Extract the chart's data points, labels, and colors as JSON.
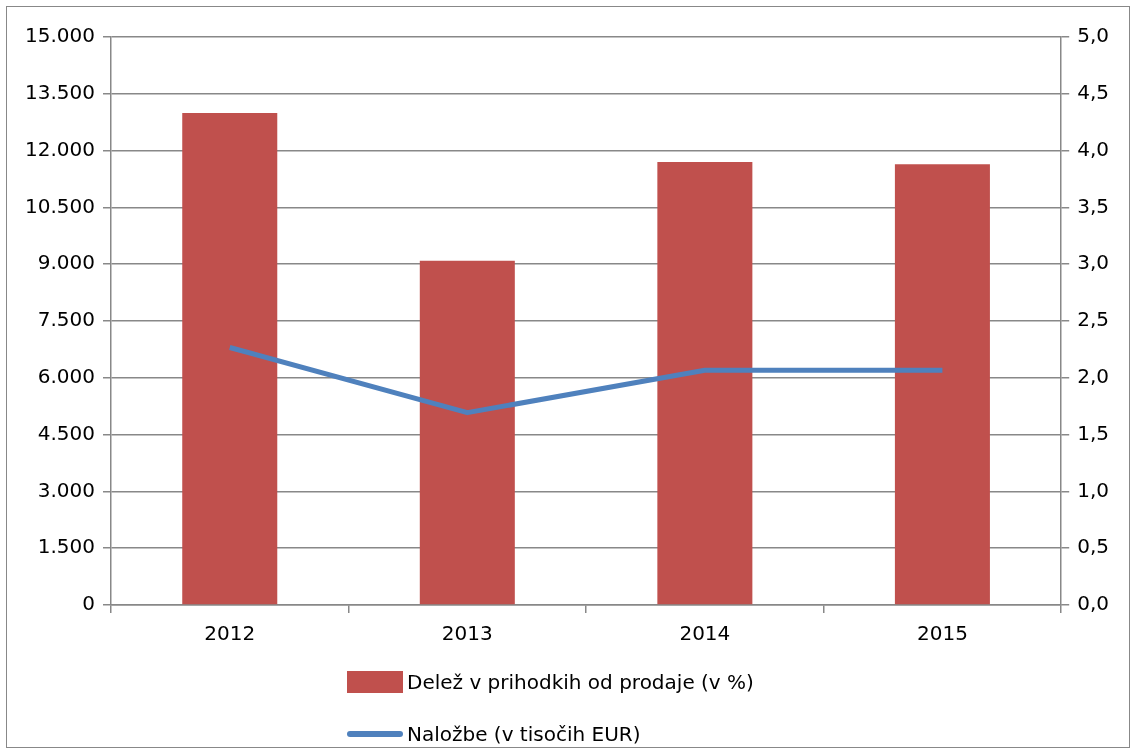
{
  "chart_data": {
    "type": "bar",
    "categories": [
      "2012",
      "2013",
      "2014",
      "2015"
    ],
    "series": [
      {
        "name": "Delež v prihodkih od prodaje (v %)",
        "color": "#c0504d",
        "values": [
          4.33,
          3.03,
          3.9,
          3.88
        ],
        "axis": "y2"
      },
      {
        "name": "Naložbe (v tisočih EUR)",
        "type": "line",
        "color": "#4f81bd",
        "values": [
          6800,
          5080,
          6200,
          6200
        ],
        "axis": "y"
      }
    ],
    "ylim": [
      0,
      15000
    ],
    "yticks": [
      {
        "value": 0,
        "label": "0"
      },
      {
        "value": 1500,
        "label": "1.500"
      },
      {
        "value": 3000,
        "label": "3.000"
      },
      {
        "value": 4500,
        "label": "4.500"
      },
      {
        "value": 6000,
        "label": "6.000"
      },
      {
        "value": 7500,
        "label": "7.500"
      },
      {
        "value": 9000,
        "label": "9.000"
      },
      {
        "value": 10500,
        "label": "10.500"
      },
      {
        "value": 12000,
        "label": "12.000"
      },
      {
        "value": 13500,
        "label": "13.500"
      },
      {
        "value": 15000,
        "label": "15.000"
      }
    ],
    "y2lim": [
      0,
      5
    ],
    "y2ticks": [
      {
        "value": 0,
        "label": "0,0"
      },
      {
        "value": 0.5,
        "label": "0,5"
      },
      {
        "value": 1,
        "label": "1,0"
      },
      {
        "value": 1.5,
        "label": "1,5"
      },
      {
        "value": 2,
        "label": "2,0"
      },
      {
        "value": 2.5,
        "label": "2,5"
      },
      {
        "value": 3,
        "label": "3,0"
      },
      {
        "value": 3.5,
        "label": "3,5"
      },
      {
        "value": 4,
        "label": "4,0"
      },
      {
        "value": 4.5,
        "label": "4,5"
      },
      {
        "value": 5,
        "label": "5,0"
      }
    ],
    "grid": "y",
    "legend": "bottom",
    "marker": "none",
    "line_style": "solid"
  }
}
